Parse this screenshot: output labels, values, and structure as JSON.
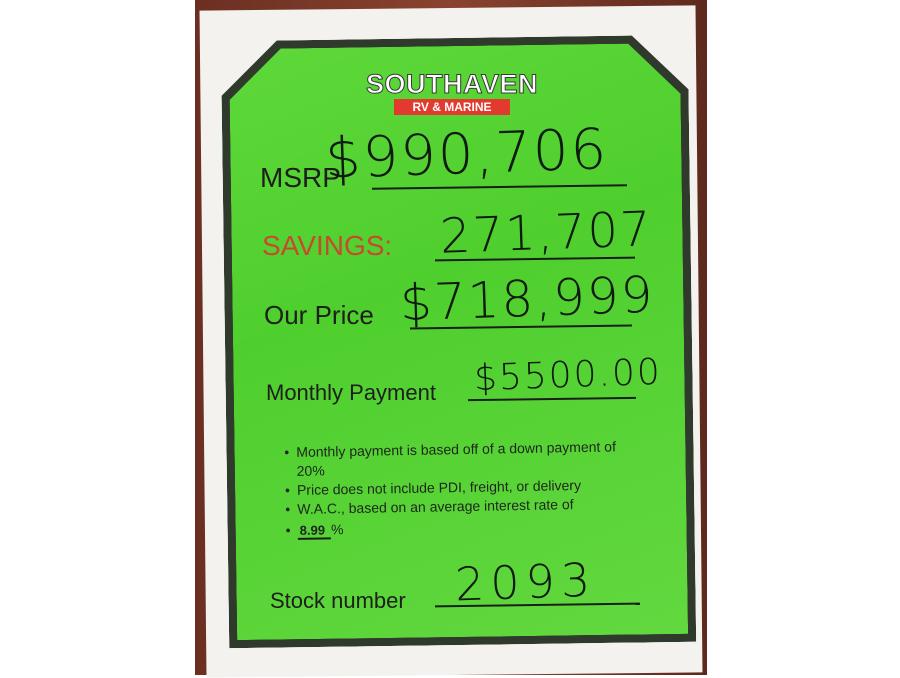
{
  "logo": {
    "name": "SOUTHAVEN",
    "subtitle": "RV & MARINE"
  },
  "msrp": {
    "label": "MSRP",
    "value": "$990,706"
  },
  "savings": {
    "label": "SAVINGS:",
    "value": "271,707",
    "color": "#c84a2e"
  },
  "our_price": {
    "label": "Our Price",
    "value": "$718,999"
  },
  "monthly_payment": {
    "label": "Monthly Payment",
    "value": "$5500.00"
  },
  "notes": [
    "Monthly payment is based off of a down payment of 20%",
    "Price does not include PDI, freight, or delivery",
    "W.A.C., based on an average interest rate of"
  ],
  "interest_rate": {
    "value": "8.99",
    "suffix": "%"
  },
  "stock": {
    "label": "Stock number",
    "value": "2093"
  },
  "colors": {
    "sign_green": "#56d334",
    "border": "#2f3a2c",
    "logo_red": "#e23a2e"
  }
}
